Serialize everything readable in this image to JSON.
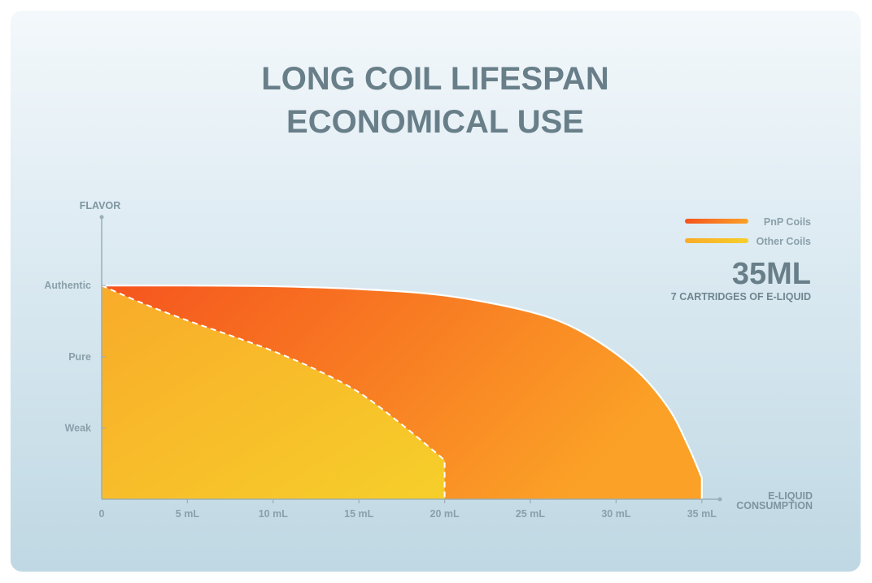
{
  "title_lines": [
    "LONG COIL LIFESPAN",
    "ECONOMICAL USE"
  ],
  "callout": {
    "value": "35ML",
    "caption": "7 CARTRIDGES OF E-LIQUID"
  },
  "colors": {
    "pnp_start": "#f5541e",
    "pnp_end": "#fba127",
    "other_start": "#f9ab2a",
    "other_end": "#f6cf2a",
    "title": "#687f89",
    "axis": "#9aaeb6"
  },
  "chart_data": {
    "type": "area",
    "title": "LONG COIL LIFESPAN ECONOMICAL USE",
    "xlabel": "E-LIQUID CONSUMPTION",
    "ylabel": "FLAVOR",
    "x_ticks": [
      "0",
      "5 mL",
      "10 mL",
      "15 mL",
      "20 mL",
      "25 mL",
      "30 mL",
      "35 mL"
    ],
    "x_tick_values": [
      0,
      5,
      10,
      15,
      20,
      25,
      30,
      35
    ],
    "y_ticks": [
      "Weak",
      "Pure",
      "Authentic"
    ],
    "y_tick_values": [
      1,
      2,
      3
    ],
    "xlim": [
      0,
      37.5
    ],
    "ylim": [
      0,
      3
    ],
    "legend_position": "top-right",
    "series": [
      {
        "name": "PnP Coils",
        "x": [
          0,
          5,
          10,
          15,
          20,
          25,
          28,
          31,
          33,
          34.2,
          35,
          35
        ],
        "y": [
          3,
          3,
          2.99,
          2.95,
          2.86,
          2.63,
          2.35,
          1.85,
          1.3,
          0.75,
          0.3,
          0
        ]
      },
      {
        "name": "Other Coils",
        "x": [
          0,
          2.5,
          5,
          7.5,
          10,
          12.5,
          15,
          17.5,
          20,
          20
        ],
        "y": [
          3,
          2.74,
          2.51,
          2.3,
          2.08,
          1.82,
          1.5,
          1.05,
          0.55,
          0
        ]
      }
    ]
  }
}
